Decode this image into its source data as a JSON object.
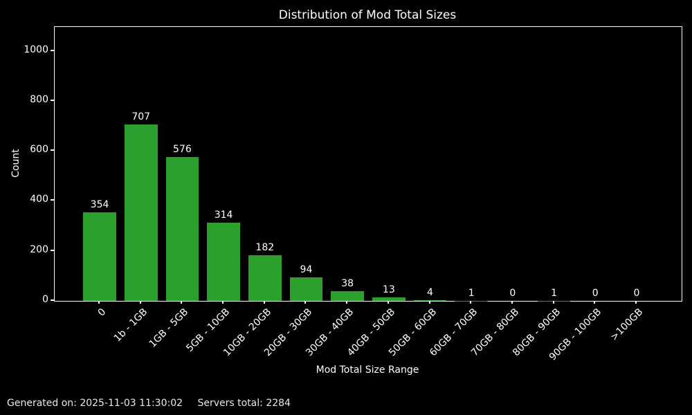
{
  "title": "Distribution of Mod Total Sizes",
  "footer": {
    "generated": "Generated on: 2025-11-03 11:30:02",
    "servers_total": "Servers total: 2284"
  },
  "chart_data": {
    "type": "bar",
    "title": "Distribution of Mod Total Sizes",
    "xlabel": "Mod Total Size Range",
    "ylabel": "Count",
    "categories": [
      "0",
      "1b - 1GB",
      "1GB - 5GB",
      "5GB - 10GB",
      "10GB - 20GB",
      "20GB - 30GB",
      "30GB - 40GB",
      "40GB - 50GB",
      "50GB - 60GB",
      "60GB - 70GB",
      "70GB - 80GB",
      "80GB - 90GB",
      "90GB - 100GB",
      ">100GB"
    ],
    "values": [
      354,
      707,
      576,
      314,
      182,
      94,
      38,
      13,
      4,
      1,
      0,
      1,
      0,
      0
    ],
    "yticks": [
      0,
      200,
      400,
      600,
      800,
      1000
    ],
    "ylim": [
      0,
      1096
    ],
    "bar_color": "#2ca02c",
    "background": "#000000",
    "text_color": "#ffffff",
    "grid": false,
    "legend": null,
    "bar_labels_shown": true,
    "x_tick_rotation_deg": 45
  }
}
